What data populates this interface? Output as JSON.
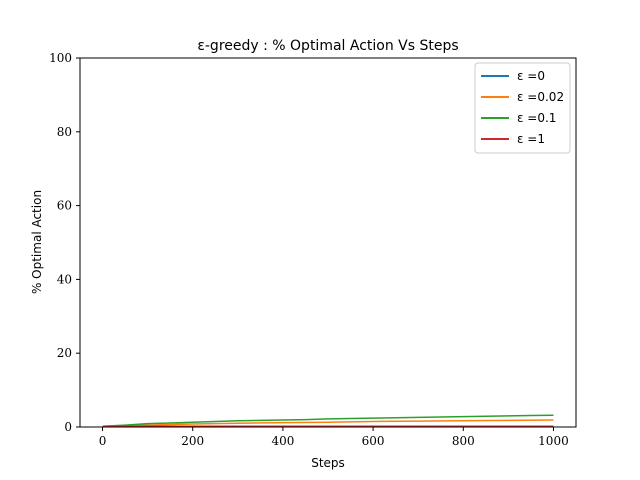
{
  "chart_data": {
    "type": "line",
    "title": "ε-greedy : % Optimal Action Vs Steps",
    "xlabel": "Steps",
    "ylabel": "% Optimal Action",
    "xlim": [
      -50,
      1050
    ],
    "ylim": [
      0,
      100
    ],
    "xticks": [
      0,
      200,
      400,
      600,
      800,
      1000
    ],
    "yticks": [
      0,
      20,
      40,
      60,
      80,
      100
    ],
    "grid": false,
    "legend_position": "top-right",
    "series": [
      {
        "name": "ε =0",
        "color": "#1f77b4",
        "x": [
          0,
          100,
          200,
          300,
          400,
          500,
          600,
          700,
          800,
          900,
          1000
        ],
        "y": [
          0.1,
          0.1,
          0.1,
          0.1,
          0.1,
          0.1,
          0.1,
          0.1,
          0.1,
          0.1,
          0.1
        ]
      },
      {
        "name": "ε =0.02",
        "color": "#ff7f0e",
        "x": [
          0,
          100,
          200,
          300,
          400,
          500,
          600,
          700,
          800,
          900,
          1000
        ],
        "y": [
          0.2,
          0.5,
          0.8,
          1.0,
          1.2,
          1.3,
          1.5,
          1.6,
          1.7,
          1.8,
          1.9
        ]
      },
      {
        "name": "ε =0.1",
        "color": "#2ca02c",
        "x": [
          0,
          50,
          100,
          150,
          200,
          250,
          300,
          350,
          400,
          450,
          500,
          550,
          600,
          650,
          700,
          750,
          800,
          850,
          900,
          950,
          1000
        ],
        "y": [
          0.2,
          0.5,
          0.9,
          1.1,
          1.3,
          1.5,
          1.7,
          1.8,
          1.9,
          2.0,
          2.2,
          2.3,
          2.4,
          2.5,
          2.6,
          2.7,
          2.8,
          2.9,
          3.0,
          3.1,
          3.2
        ]
      },
      {
        "name": "ε =1",
        "color": "#d62728",
        "x": [
          0,
          100,
          200,
          300,
          400,
          500,
          600,
          700,
          800,
          900,
          1000
        ],
        "y": [
          0.1,
          0.2,
          0.2,
          0.2,
          0.2,
          0.2,
          0.2,
          0.2,
          0.2,
          0.2,
          0.2
        ]
      }
    ]
  }
}
